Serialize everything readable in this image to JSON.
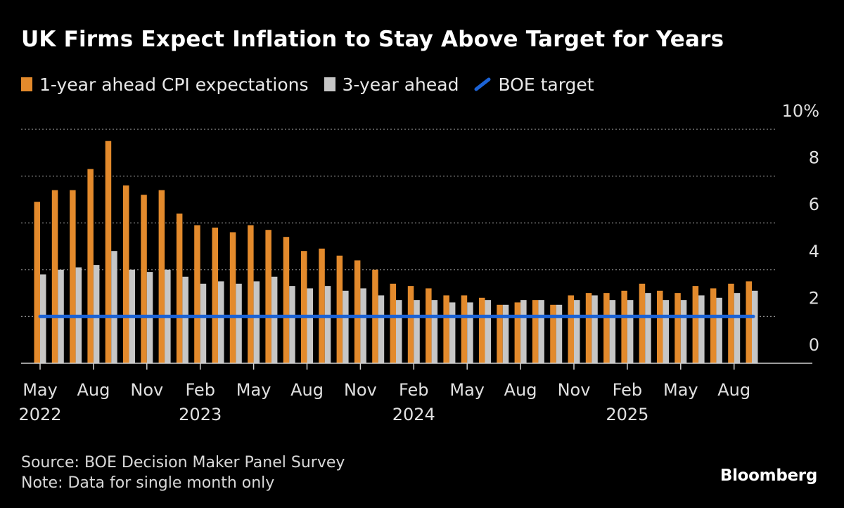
{
  "title": "UK Firms Expect Inflation to Stay Above Target for Years",
  "legend": [
    {
      "label": "1-year ahead CPI expectations",
      "color": "#e38a2c",
      "kind": "bar"
    },
    {
      "label": "3-year ahead",
      "color": "#c6c6c6",
      "kind": "bar"
    },
    {
      "label": "BOE target",
      "color": "#1c63d6",
      "kind": "line"
    }
  ],
  "footer": {
    "source": "Source: BOE Decision Maker Panel Survey",
    "note": "Note: Data for single month only"
  },
  "brand": "Bloomberg",
  "chart_data": {
    "type": "bar",
    "title": "UK Firms Expect Inflation to Stay Above Target for Years",
    "xlabel": "",
    "ylabel": "%",
    "ylim": [
      0,
      10
    ],
    "y_ticks": [
      {
        "value": 0,
        "label": "0"
      },
      {
        "value": 2,
        "label": "2"
      },
      {
        "value": 4,
        "label": "4"
      },
      {
        "value": 6,
        "label": "6"
      },
      {
        "value": 8,
        "label": "8"
      },
      {
        "value": 10,
        "label": "10%"
      }
    ],
    "categories": [
      "2022-05",
      "2022-06",
      "2022-07",
      "2022-08",
      "2022-09",
      "2022-10",
      "2022-11",
      "2022-12",
      "2023-01",
      "2023-02",
      "2023-03",
      "2023-04",
      "2023-05",
      "2023-06",
      "2023-07",
      "2023-08",
      "2023-09",
      "2023-10",
      "2023-11",
      "2023-12",
      "2024-01",
      "2024-02",
      "2024-03",
      "2024-04",
      "2024-05",
      "2024-06",
      "2024-07",
      "2024-08",
      "2024-09",
      "2024-10",
      "2024-11",
      "2024-12",
      "2025-01",
      "2025-02",
      "2025-03",
      "2025-04",
      "2025-05",
      "2025-06",
      "2025-07",
      "2025-08",
      "2025-09"
    ],
    "x_tick_labels": [
      {
        "index": 0,
        "month": "May",
        "year": "2022"
      },
      {
        "index": 3,
        "month": "Aug",
        "year": ""
      },
      {
        "index": 6,
        "month": "Nov",
        "year": ""
      },
      {
        "index": 9,
        "month": "Feb",
        "year": "2023"
      },
      {
        "index": 12,
        "month": "May",
        "year": ""
      },
      {
        "index": 15,
        "month": "Aug",
        "year": ""
      },
      {
        "index": 18,
        "month": "Nov",
        "year": ""
      },
      {
        "index": 21,
        "month": "Feb",
        "year": "2024"
      },
      {
        "index": 24,
        "month": "May",
        "year": ""
      },
      {
        "index": 27,
        "month": "Aug",
        "year": ""
      },
      {
        "index": 30,
        "month": "Nov",
        "year": ""
      },
      {
        "index": 33,
        "month": "Feb",
        "year": "2025"
      },
      {
        "index": 36,
        "month": "May",
        "year": ""
      },
      {
        "index": 39,
        "month": "Aug",
        "year": ""
      }
    ],
    "series": [
      {
        "name": "1-year ahead CPI expectations",
        "color": "#e38a2c",
        "values": [
          6.9,
          7.4,
          7.4,
          8.3,
          9.5,
          7.6,
          7.2,
          7.4,
          6.4,
          5.9,
          5.8,
          5.6,
          5.9,
          5.7,
          5.4,
          4.8,
          4.9,
          4.6,
          4.4,
          4.0,
          3.4,
          3.3,
          3.2,
          2.9,
          2.9,
          2.8,
          2.5,
          2.6,
          2.7,
          2.5,
          2.9,
          3.0,
          3.0,
          3.1,
          3.4,
          3.1,
          3.0,
          3.3,
          3.2,
          3.4,
          3.5
        ]
      },
      {
        "name": "3-year ahead",
        "color": "#c6c6c6",
        "values": [
          3.8,
          4.0,
          4.1,
          4.2,
          4.8,
          4.0,
          3.9,
          4.0,
          3.7,
          3.4,
          3.5,
          3.4,
          3.5,
          3.7,
          3.3,
          3.2,
          3.3,
          3.1,
          3.2,
          2.9,
          2.7,
          2.7,
          2.7,
          2.6,
          2.6,
          2.7,
          2.5,
          2.7,
          2.7,
          2.5,
          2.7,
          2.9,
          2.7,
          2.7,
          3.0,
          2.7,
          2.7,
          2.9,
          2.8,
          3.0,
          3.1
        ]
      },
      {
        "name": "BOE target",
        "color": "#1c63d6",
        "type": "line",
        "value": 2.0
      }
    ]
  }
}
